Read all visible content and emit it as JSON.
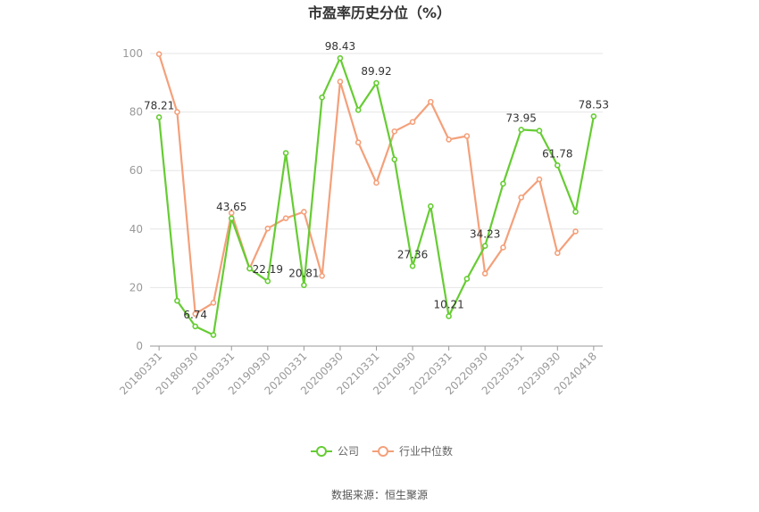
{
  "chart_data": {
    "type": "line",
    "title": "市盈率历史分位（%）",
    "source": "数据来源：恒生聚源",
    "ylim": [
      0,
      100
    ],
    "yticks": [
      "0",
      "20",
      "40",
      "60",
      "80",
      "100"
    ],
    "x_tick_labels": [
      "20180331",
      "20180930",
      "20190331",
      "20190930",
      "20200331",
      "20200930",
      "20210331",
      "20210930",
      "20220331",
      "20220930",
      "20230331",
      "20230930",
      "20240418"
    ],
    "grid": true,
    "legend_position": "bottom",
    "series": [
      {
        "name": "公司",
        "color": "#66cc33",
        "values": [
          78.21,
          15.5,
          6.74,
          3.8,
          43.65,
          26.5,
          22.19,
          66.0,
          20.81,
          85.0,
          98.43,
          80.7,
          89.92,
          63.8,
          27.36,
          47.8,
          10.21,
          23.0,
          34.23,
          55.5,
          73.95,
          73.6,
          61.78,
          45.9,
          78.53
        ],
        "labels": [
          "78.21",
          "",
          "6.74",
          "",
          "43.65",
          "",
          "22.19",
          "",
          "20.81",
          "",
          "98.43",
          "",
          "89.92",
          "",
          "27.36",
          "",
          "10.21",
          "",
          "34.23",
          "",
          "73.95",
          "",
          "61.78",
          "",
          "78.53"
        ]
      },
      {
        "name": "行业中位数",
        "color": "#f4a07a",
        "values": [
          99.8,
          80.0,
          11.0,
          14.8,
          45.5,
          26.5,
          40.2,
          43.7,
          45.9,
          24.0,
          90.4,
          69.6,
          55.8,
          73.4,
          76.6,
          83.5,
          70.6,
          71.8,
          24.8,
          33.7,
          50.8,
          57.0,
          31.8,
          39.2,
          null
        ]
      }
    ]
  }
}
